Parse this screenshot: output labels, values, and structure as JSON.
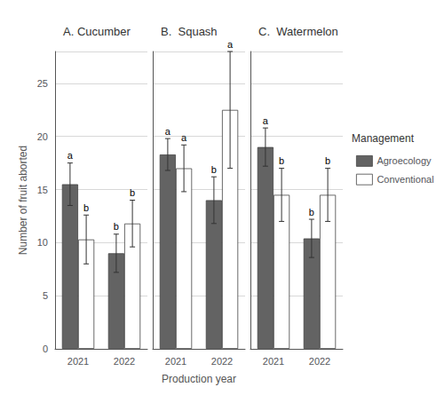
{
  "chart_data": [
    {
      "type": "bar",
      "title": "A. Cucumber",
      "categories": [
        "2021",
        "2022"
      ],
      "ylabel": "Number of fruit aborted",
      "ylim": [
        0,
        28
      ],
      "yticks": [
        0,
        5,
        10,
        15,
        20,
        25
      ],
      "grid": true,
      "series": [
        {
          "name": "Agroecology",
          "color": "#636363",
          "values": [
            15.5,
            9.0
          ],
          "errors": [
            2.0,
            1.8
          ],
          "annotations": [
            "a",
            "b"
          ]
        },
        {
          "name": "Conventional",
          "color": "#ffffff",
          "values": [
            10.3,
            11.8
          ],
          "errors": [
            2.3,
            2.2
          ],
          "annotations": [
            "b",
            "b"
          ]
        }
      ]
    },
    {
      "type": "bar",
      "title": "B.  Squash",
      "categories": [
        "2021",
        "2022"
      ],
      "xlabel": "Production year",
      "ylim": [
        0,
        28
      ],
      "yticks": [
        0,
        5,
        10,
        15,
        20,
        25
      ],
      "grid": true,
      "tick_labels": "x",
      "series": [
        {
          "name": "Agroecology",
          "color": "#636363",
          "values": [
            18.3,
            14.0
          ],
          "errors": [
            1.5,
            2.2
          ],
          "annotations": [
            "a",
            "b"
          ]
        },
        {
          "name": "Conventional",
          "color": "#ffffff",
          "values": [
            17.0,
            22.5
          ],
          "errors": [
            2.2,
            5.5
          ],
          "annotations": [
            "a",
            "a"
          ]
        }
      ]
    },
    {
      "type": "bar",
      "title": "C.  Watermelon",
      "categories": [
        "2021",
        "2022"
      ],
      "ylim": [
        0,
        28
      ],
      "yticks": [
        0,
        5,
        10,
        15,
        20,
        25
      ],
      "grid": true,
      "tick_labels": "x",
      "legend": "right",
      "legend_title": "Management",
      "series": [
        {
          "name": "Agroecology",
          "color": "#636363",
          "values": [
            19.0,
            10.4
          ],
          "errors": [
            1.8,
            1.8
          ],
          "annotations": [
            "a",
            "b"
          ]
        },
        {
          "name": "Conventional",
          "color": "#ffffff",
          "values": [
            14.5,
            14.5
          ],
          "errors": [
            2.5,
            2.5
          ],
          "annotations": [
            "b",
            "b"
          ]
        }
      ]
    }
  ]
}
